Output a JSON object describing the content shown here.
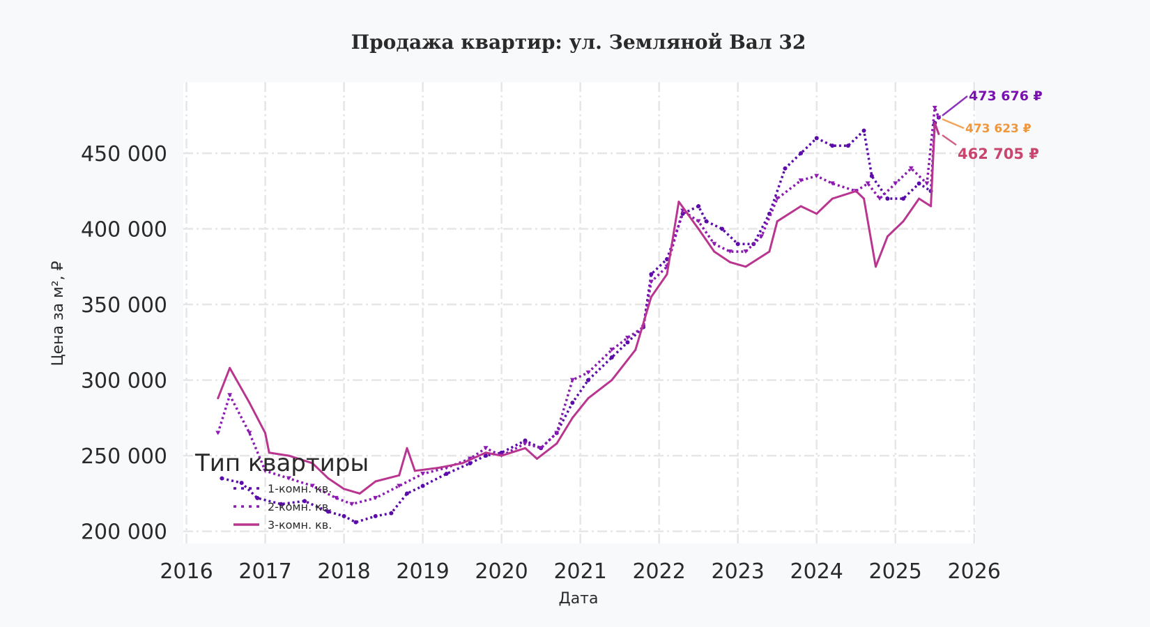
{
  "chart_data": {
    "type": "line",
    "title": "Продажа квартир: ул. Земляной Вал 32",
    "xlabel": "Дата",
    "ylabel": "Цена за м², ₽",
    "xlim": [
      2015.96,
      2026.02
    ],
    "ylim": [
      192000,
      497000
    ],
    "x_ticks": [
      "2016",
      "2017",
      "2018",
      "2019",
      "2020",
      "2021",
      "2022",
      "2023",
      "2024",
      "2025",
      "2026"
    ],
    "y_ticks": [
      "200 000",
      "250 000",
      "300 000",
      "350 000",
      "400 000",
      "450 000"
    ],
    "y_tick_values": [
      200000,
      250000,
      300000,
      350000,
      400000,
      450000
    ],
    "grid": true,
    "legend": {
      "title": "Тип квартиры",
      "placement": "bottom-left"
    },
    "series": [
      {
        "name": "1-комн. кв.",
        "color": "#5b0ca8",
        "style": "dotted-circles",
        "x": [
          2016.45,
          2016.7,
          2016.9,
          2017.2,
          2017.5,
          2017.8,
          2018.0,
          2018.15,
          2018.4,
          2018.6,
          2018.8,
          2019.0,
          2019.3,
          2019.6,
          2019.8,
          2020.0,
          2020.3,
          2020.5,
          2020.7,
          2020.9,
          2021.1,
          2021.4,
          2021.6,
          2021.8,
          2021.9,
          2022.1,
          2022.3,
          2022.5,
          2022.6,
          2022.8,
          2023.0,
          2023.2,
          2023.4,
          2023.6,
          2023.8,
          2024.0,
          2024.2,
          2024.4,
          2024.6,
          2024.7,
          2024.9,
          2025.1,
          2025.3,
          2025.45,
          2025.5,
          2025.55
        ],
        "y": [
          235000,
          232000,
          222000,
          218000,
          220000,
          213000,
          210000,
          206000,
          210000,
          212000,
          225000,
          230000,
          238000,
          245000,
          250000,
          252000,
          260000,
          255000,
          265000,
          285000,
          300000,
          315000,
          325000,
          335000,
          370000,
          380000,
          410000,
          415000,
          405000,
          400000,
          390000,
          390000,
          410000,
          440000,
          450000,
          460000,
          455000,
          455000,
          465000,
          435000,
          420000,
          420000,
          430000,
          425000,
          470000,
          473676
        ]
      },
      {
        "name": "2-комн. кв.",
        "color": "#8b1bb0",
        "style": "dotted-triangles",
        "x": [
          2016.4,
          2016.55,
          2016.8,
          2017.0,
          2017.3,
          2017.6,
          2017.9,
          2018.1,
          2018.4,
          2018.7,
          2019.0,
          2019.3,
          2019.6,
          2019.8,
          2020.0,
          2020.3,
          2020.5,
          2020.7,
          2020.9,
          2021.1,
          2021.4,
          2021.6,
          2021.8,
          2021.9,
          2022.1,
          2022.3,
          2022.5,
          2022.7,
          2022.9,
          2023.1,
          2023.3,
          2023.5,
          2023.8,
          2024.0,
          2024.2,
          2024.5,
          2024.65,
          2024.8,
          2025.0,
          2025.2,
          2025.4,
          2025.5,
          2025.55
        ],
        "y": [
          265000,
          290000,
          265000,
          240000,
          235000,
          230000,
          222000,
          218000,
          222000,
          230000,
          238000,
          242000,
          248000,
          255000,
          250000,
          258000,
          255000,
          265000,
          300000,
          305000,
          320000,
          328000,
          335000,
          365000,
          375000,
          412000,
          405000,
          390000,
          385000,
          385000,
          395000,
          420000,
          432000,
          435000,
          430000,
          425000,
          430000,
          420000,
          430000,
          440000,
          430000,
          480000,
          473623
        ]
      },
      {
        "name": "3-комн. кв.",
        "color": "#b83590",
        "style": "solid",
        "x": [
          2016.4,
          2016.55,
          2016.8,
          2017.0,
          2017.05,
          2017.3,
          2017.6,
          2017.8,
          2018.0,
          2018.2,
          2018.4,
          2018.7,
          2018.8,
          2018.9,
          2019.2,
          2019.5,
          2019.8,
          2020.0,
          2020.3,
          2020.45,
          2020.7,
          2020.9,
          2021.1,
          2021.4,
          2021.7,
          2021.9,
          2022.1,
          2022.25,
          2022.5,
          2022.7,
          2022.9,
          2023.1,
          2023.4,
          2023.5,
          2023.8,
          2024.0,
          2024.2,
          2024.5,
          2024.6,
          2024.75,
          2024.9,
          2025.1,
          2025.3,
          2025.45,
          2025.5,
          2025.55
        ],
        "y": [
          288000,
          308000,
          285000,
          265000,
          252000,
          250000,
          245000,
          235000,
          228000,
          225000,
          233000,
          237000,
          255000,
          240000,
          242000,
          245000,
          252000,
          250000,
          255000,
          248000,
          258000,
          275000,
          288000,
          300000,
          320000,
          355000,
          370000,
          418000,
          400000,
          385000,
          378000,
          375000,
          385000,
          405000,
          415000,
          410000,
          420000,
          425000,
          420000,
          375000,
          395000,
          405000,
          420000,
          415000,
          470000,
          462705
        ]
      }
    ],
    "annotations": [
      {
        "text": "473 676 ₽",
        "color": "#7a10b0"
      },
      {
        "text": "473 623 ₽",
        "color": "#f0963c"
      },
      {
        "text": "462 705 ₽",
        "color": "#c8466e"
      }
    ]
  }
}
